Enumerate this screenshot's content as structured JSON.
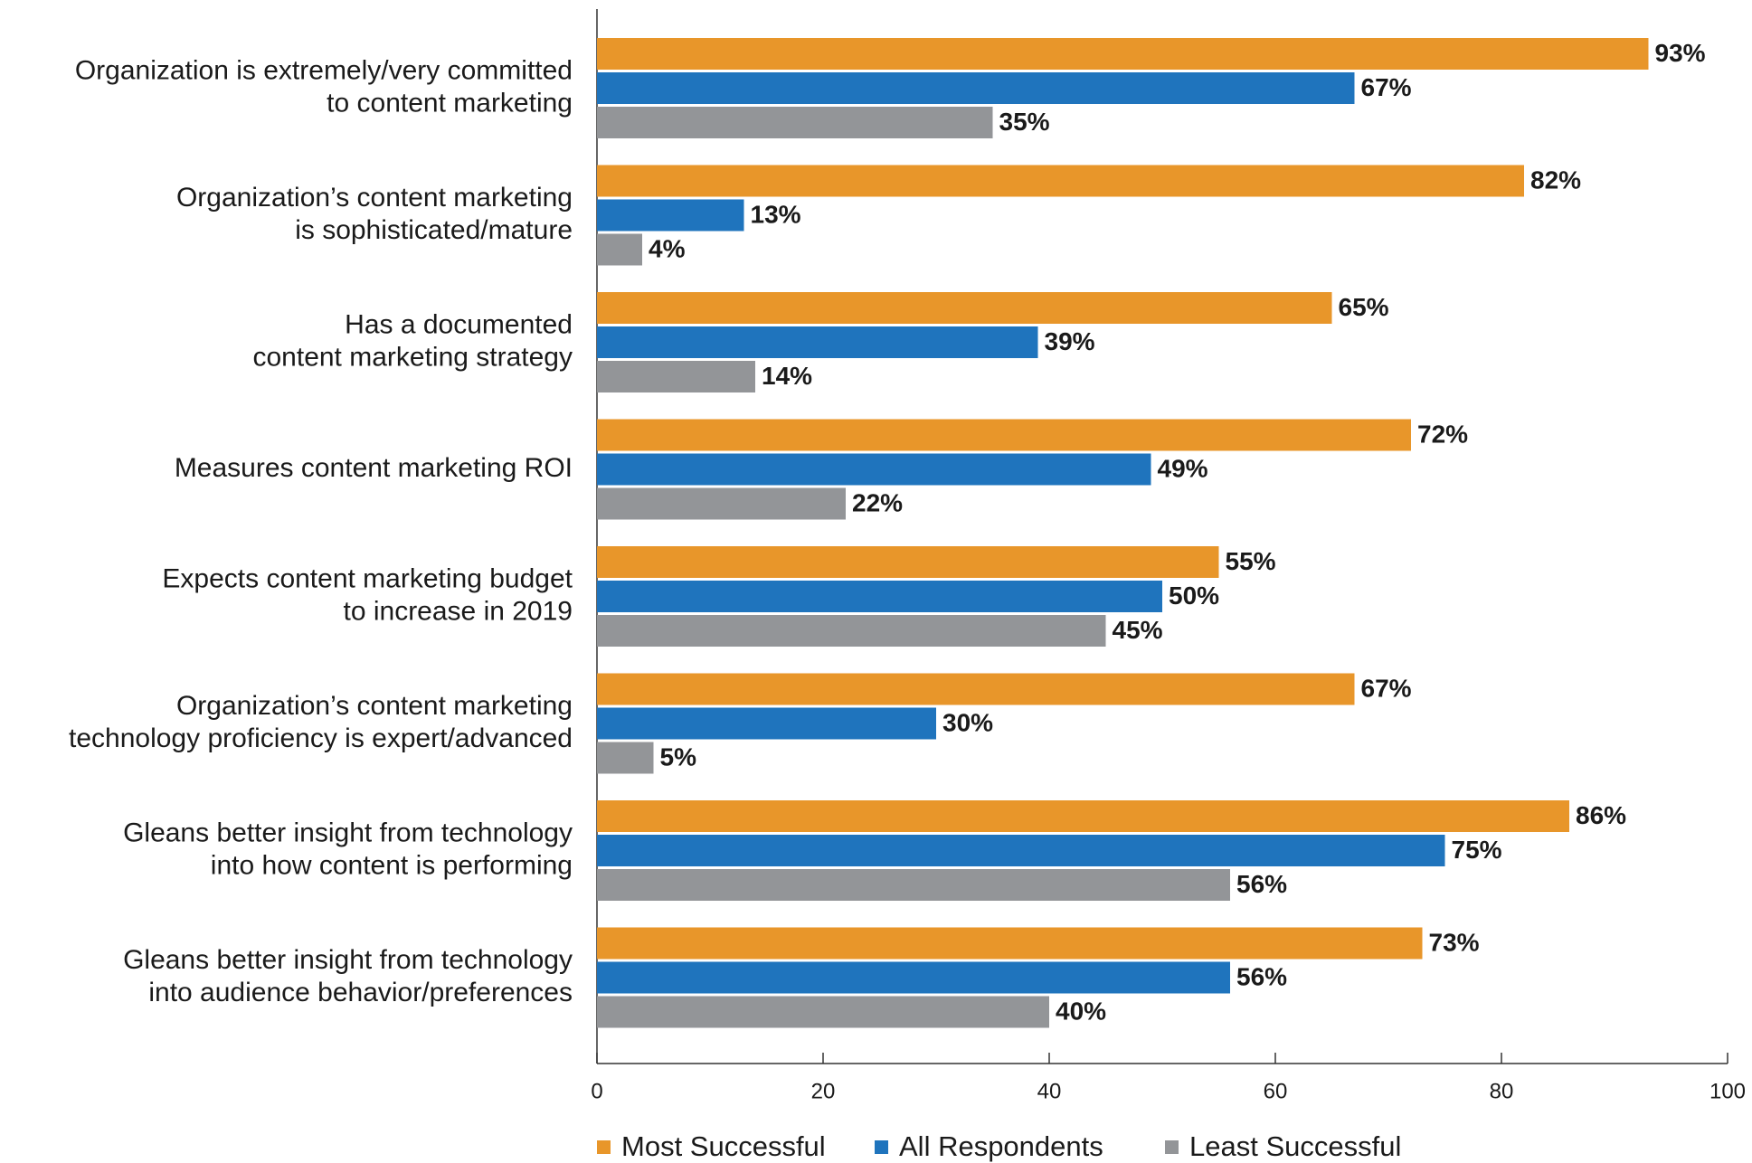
{
  "chart_data": {
    "type": "barh",
    "categories": [
      [
        "Organization is extremely/very committed",
        "to content marketing"
      ],
      [
        "Organization’s content marketing",
        "is sophisticated/mature"
      ],
      [
        "Has a documented",
        "content marketing strategy"
      ],
      [
        "Measures content marketing ROI"
      ],
      [
        "Expects content marketing budget",
        "to increase in 2019"
      ],
      [
        "Organization’s content marketing",
        "technology proficiency is expert/advanced"
      ],
      [
        "Gleans better insight from technology",
        "into how content is performing"
      ],
      [
        "Gleans better insight from technology",
        "into audience behavior/preferences"
      ]
    ],
    "series": [
      {
        "name": "Most Successful",
        "color": "#e8962a",
        "values": [
          93,
          82,
          65,
          72,
          55,
          67,
          86,
          73
        ],
        "value_labels": [
          "93%",
          "82%",
          "65%",
          "72%",
          "55%",
          "67%",
          "86%",
          "73%"
        ]
      },
      {
        "name": "All Respondents",
        "color": "#1f74bd",
        "values": [
          67,
          13,
          39,
          49,
          50,
          30,
          75,
          56
        ],
        "value_labels": [
          "67%",
          "13%",
          "39%",
          "49%",
          "50%",
          "30%",
          "75%",
          "56%"
        ]
      },
      {
        "name": "Least Successful",
        "color": "#939598",
        "values": [
          35,
          4,
          14,
          22,
          45,
          5,
          56,
          40
        ],
        "value_labels": [
          "35%",
          "4%",
          "14%",
          "22%",
          "45%",
          "5%",
          "56%",
          "40%"
        ]
      }
    ],
    "xlim": [
      0,
      100
    ],
    "xticks": [
      0,
      20,
      40,
      60,
      80,
      100
    ],
    "legend": "bottom"
  }
}
